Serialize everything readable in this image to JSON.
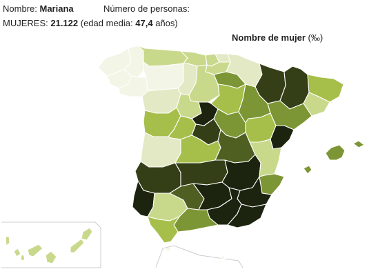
{
  "header": {
    "name_label": "Nombre:",
    "name_value": "Mariana",
    "persons_label": "Número de personas:",
    "women_label": "MUJERES:",
    "women_count": "21.122",
    "age_open": "(edad media:",
    "age_value": "47,4",
    "age_close": "años)"
  },
  "map_title": {
    "text": "Nombre de mujer",
    "unit": "(‰)"
  },
  "palette": [
    "#f3f5e6",
    "#e3e9c4",
    "#c9d98c",
    "#a6bf4a",
    "#7d9635",
    "#4f5f22",
    "#353f17",
    "#1c2410"
  ],
  "map": {
    "regions": [
      {
        "name": "coruna",
        "level": 0
      },
      {
        "name": "lugo",
        "level": 0
      },
      {
        "name": "pontevedra",
        "level": 0
      },
      {
        "name": "ourense",
        "level": 0
      },
      {
        "name": "asturias",
        "level": 2
      },
      {
        "name": "cantabria",
        "level": 2
      },
      {
        "name": "vizcaya",
        "level": 2
      },
      {
        "name": "guipuzcoa",
        "level": 1
      },
      {
        "name": "alava",
        "level": 2
      },
      {
        "name": "navarra",
        "level": 1
      },
      {
        "name": "leon",
        "level": 0
      },
      {
        "name": "palencia",
        "level": 1
      },
      {
        "name": "burgos",
        "level": 2
      },
      {
        "name": "rioja",
        "level": 4
      },
      {
        "name": "zamora",
        "level": 1
      },
      {
        "name": "valladolid",
        "level": 2
      },
      {
        "name": "soria",
        "level": 3
      },
      {
        "name": "salamanca",
        "level": 3
      },
      {
        "name": "avila",
        "level": 3
      },
      {
        "name": "segovia",
        "level": 7
      },
      {
        "name": "madrid",
        "level": 6
      },
      {
        "name": "guadalajara",
        "level": 4
      },
      {
        "name": "huesca",
        "level": 6
      },
      {
        "name": "zaragoza",
        "level": 4
      },
      {
        "name": "teruel",
        "level": 3
      },
      {
        "name": "lleida",
        "level": 6
      },
      {
        "name": "girona",
        "level": 3
      },
      {
        "name": "barcelona",
        "level": 2
      },
      {
        "name": "tarragona",
        "level": 4
      },
      {
        "name": "caceres",
        "level": 1
      },
      {
        "name": "badajoz",
        "level": 6
      },
      {
        "name": "toledo",
        "level": 3
      },
      {
        "name": "cuenca",
        "level": 5
      },
      {
        "name": "ciudad-real",
        "level": 6
      },
      {
        "name": "albacete",
        "level": 7
      },
      {
        "name": "castellon",
        "level": 7
      },
      {
        "name": "valencia",
        "level": 2
      },
      {
        "name": "alicante",
        "level": 4
      },
      {
        "name": "murcia",
        "level": 7
      },
      {
        "name": "huelva",
        "level": 7
      },
      {
        "name": "sevilla",
        "level": 2
      },
      {
        "name": "cordoba",
        "level": 5
      },
      {
        "name": "jaen",
        "level": 7
      },
      {
        "name": "granada",
        "level": 7
      },
      {
        "name": "almeria",
        "level": 7
      },
      {
        "name": "malaga",
        "level": 4
      },
      {
        "name": "cadiz",
        "level": 3
      },
      {
        "name": "mallorca",
        "level": 4
      },
      {
        "name": "menorca",
        "level": 4
      },
      {
        "name": "ibiza",
        "level": 4
      },
      {
        "name": "canarias",
        "level": 2
      },
      {
        "name": "ceuta",
        "level": 0
      },
      {
        "name": "melilla",
        "level": 0
      }
    ]
  }
}
